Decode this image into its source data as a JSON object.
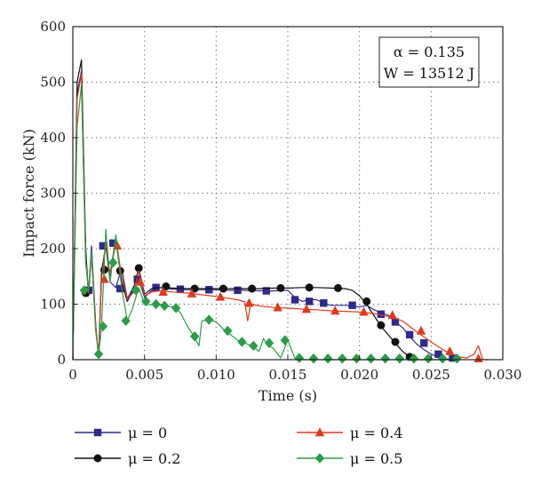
{
  "chart_data": {
    "type": "line",
    "xlabel": "Time (s)",
    "ylabel": "Impact force (kN)",
    "xlim": [
      0,
      0.03
    ],
    "ylim": [
      0,
      600
    ],
    "xticks": [
      "0",
      "0.005",
      "0.010",
      "0.015",
      "0.020",
      "0.025",
      "0.030"
    ],
    "yticks": [
      "0",
      "100",
      "200",
      "300",
      "400",
      "500",
      "600"
    ],
    "grid": "dotted",
    "annotation": {
      "line1": "α = 0.135",
      "line2": "W = 13512 J"
    },
    "legend": {
      "placement": "bottom"
    },
    "series": [
      {
        "name": "μ = 0",
        "color": "#2e2a8c",
        "marker": "square",
        "line": [
          [
            0,
            0
          ],
          [
            0.0003,
            480
          ],
          [
            0.0006,
            520
          ],
          [
            0.0009,
            180
          ],
          [
            0.0011,
            120
          ],
          [
            0.0013,
            205
          ],
          [
            0.0016,
            60
          ],
          [
            0.0018,
            5
          ],
          [
            0.002,
            150
          ],
          [
            0.0023,
            210
          ],
          [
            0.0026,
            140
          ],
          [
            0.003,
            130
          ],
          [
            0.0034,
            165
          ],
          [
            0.0038,
            110
          ],
          [
            0.0042,
            130
          ],
          [
            0.0046,
            145
          ],
          [
            0.005,
            112
          ],
          [
            0.0055,
            125
          ],
          [
            0.006,
            130
          ],
          [
            0.007,
            127
          ],
          [
            0.008,
            126
          ],
          [
            0.009,
            126
          ],
          [
            0.01,
            126
          ],
          [
            0.011,
            125
          ],
          [
            0.012,
            125
          ],
          [
            0.013,
            124
          ],
          [
            0.014,
            124
          ],
          [
            0.015,
            125
          ],
          [
            0.0155,
            112
          ],
          [
            0.016,
            105
          ],
          [
            0.0165,
            108
          ],
          [
            0.017,
            108
          ],
          [
            0.0175,
            102
          ],
          [
            0.018,
            98
          ],
          [
            0.019,
            98
          ],
          [
            0.02,
            95
          ],
          [
            0.0205,
            98
          ],
          [
            0.021,
            90
          ],
          [
            0.022,
            80
          ],
          [
            0.0225,
            68
          ],
          [
            0.023,
            58
          ],
          [
            0.0235,
            42
          ],
          [
            0.024,
            28
          ],
          [
            0.0245,
            18
          ],
          [
            0.025,
            10
          ],
          [
            0.0255,
            5
          ],
          [
            0.026,
            2
          ],
          [
            0.0265,
            0
          ],
          [
            0.027,
            0
          ]
        ],
        "markers": [
          [
            0.0011,
            125
          ],
          [
            0.0021,
            205
          ],
          [
            0.0028,
            210
          ],
          [
            0.0033,
            128
          ],
          [
            0.0045,
            145
          ],
          [
            0.0058,
            130
          ],
          [
            0.0075,
            127
          ],
          [
            0.0095,
            126
          ],
          [
            0.0115,
            125
          ],
          [
            0.0135,
            124
          ],
          [
            0.0155,
            108
          ],
          [
            0.0165,
            105
          ],
          [
            0.0175,
            102
          ],
          [
            0.0195,
            98
          ],
          [
            0.0215,
            82
          ],
          [
            0.0225,
            68
          ],
          [
            0.0235,
            45
          ],
          [
            0.0245,
            30
          ],
          [
            0.0255,
            10
          ],
          [
            0.0265,
            3
          ]
        ]
      },
      {
        "name": "μ = 0.2",
        "color": "#111111",
        "marker": "circle",
        "line": [
          [
            0,
            0
          ],
          [
            0.0003,
            500
          ],
          [
            0.0006,
            540
          ],
          [
            0.0009,
            200
          ],
          [
            0.0011,
            115
          ],
          [
            0.0013,
            195
          ],
          [
            0.0016,
            60
          ],
          [
            0.0018,
            3
          ],
          [
            0.002,
            160
          ],
          [
            0.0023,
            205
          ],
          [
            0.0026,
            150
          ],
          [
            0.003,
            215
          ],
          [
            0.0034,
            140
          ],
          [
            0.0038,
            105
          ],
          [
            0.0042,
            125
          ],
          [
            0.0046,
            165
          ],
          [
            0.005,
            118
          ],
          [
            0.0055,
            128
          ],
          [
            0.006,
            130
          ],
          [
            0.007,
            129
          ],
          [
            0.008,
            128
          ],
          [
            0.009,
            128
          ],
          [
            0.01,
            128
          ],
          [
            0.011,
            128
          ],
          [
            0.012,
            128
          ],
          [
            0.013,
            128
          ],
          [
            0.014,
            129
          ],
          [
            0.015,
            129
          ],
          [
            0.016,
            130
          ],
          [
            0.017,
            130
          ],
          [
            0.018,
            129
          ],
          [
            0.019,
            128
          ],
          [
            0.0195,
            125
          ],
          [
            0.02,
            115
          ],
          [
            0.0205,
            100
          ],
          [
            0.021,
            80
          ],
          [
            0.0215,
            60
          ],
          [
            0.022,
            45
          ],
          [
            0.0225,
            30
          ],
          [
            0.023,
            15
          ],
          [
            0.0235,
            5
          ],
          [
            0.024,
            0
          ],
          [
            0.025,
            0
          ]
        ],
        "markers": [
          [
            0.0009,
            120
          ],
          [
            0.0022,
            162
          ],
          [
            0.0033,
            160
          ],
          [
            0.0046,
            165
          ],
          [
            0.0065,
            132
          ],
          [
            0.0085,
            128
          ],
          [
            0.0105,
            128
          ],
          [
            0.0125,
            128
          ],
          [
            0.0145,
            129
          ],
          [
            0.0165,
            130
          ],
          [
            0.0185,
            129
          ],
          [
            0.0205,
            105
          ],
          [
            0.0215,
            62
          ],
          [
            0.0225,
            32
          ],
          [
            0.0235,
            5
          ]
        ]
      },
      {
        "name": "μ = 0.4",
        "color": "#e03a1e",
        "marker": "triangle",
        "line": [
          [
            0,
            0
          ],
          [
            0.0003,
            470
          ],
          [
            0.0006,
            515
          ],
          [
            0.0009,
            180
          ],
          [
            0.0011,
            120
          ],
          [
            0.0013,
            190
          ],
          [
            0.0016,
            50
          ],
          [
            0.0018,
            10
          ],
          [
            0.002,
            145
          ],
          [
            0.0023,
            210
          ],
          [
            0.0026,
            155
          ],
          [
            0.003,
            220
          ],
          [
            0.0034,
            150
          ],
          [
            0.0038,
            110
          ],
          [
            0.0042,
            120
          ],
          [
            0.0046,
            160
          ],
          [
            0.005,
            115
          ],
          [
            0.0055,
            122
          ],
          [
            0.006,
            124
          ],
          [
            0.007,
            122
          ],
          [
            0.008,
            120
          ],
          [
            0.009,
            117
          ],
          [
            0.01,
            114
          ],
          [
            0.011,
            110
          ],
          [
            0.0115,
            108
          ],
          [
            0.012,
            104
          ],
          [
            0.0122,
            70
          ],
          [
            0.0124,
            100
          ],
          [
            0.013,
            97
          ],
          [
            0.014,
            94
          ],
          [
            0.015,
            93
          ],
          [
            0.016,
            91
          ],
          [
            0.017,
            90
          ],
          [
            0.018,
            88
          ],
          [
            0.019,
            87
          ],
          [
            0.02,
            86
          ],
          [
            0.021,
            83
          ],
          [
            0.022,
            78
          ],
          [
            0.023,
            70
          ],
          [
            0.0235,
            60
          ],
          [
            0.024,
            50
          ],
          [
            0.025,
            32
          ],
          [
            0.026,
            15
          ],
          [
            0.027,
            5
          ],
          [
            0.0275,
            3
          ],
          [
            0.028,
            10
          ],
          [
            0.0283,
            25
          ],
          [
            0.0286,
            0
          ],
          [
            0.029,
            0
          ]
        ],
        "markers": [
          [
            0.0022,
            145
          ],
          [
            0.0031,
            205
          ],
          [
            0.0047,
            140
          ],
          [
            0.0063,
            122
          ],
          [
            0.0083,
            119
          ],
          [
            0.0103,
            113
          ],
          [
            0.0123,
            102
          ],
          [
            0.0143,
            94
          ],
          [
            0.0163,
            91
          ],
          [
            0.0183,
            88
          ],
          [
            0.0203,
            86
          ],
          [
            0.0223,
            80
          ],
          [
            0.0243,
            52
          ],
          [
            0.0263,
            15
          ],
          [
            0.0283,
            2
          ]
        ]
      },
      {
        "name": "μ = 0.5",
        "color": "#2a9d48",
        "marker": "diamond",
        "line": [
          [
            0,
            0
          ],
          [
            0.0003,
            420
          ],
          [
            0.0006,
            495
          ],
          [
            0.0009,
            175
          ],
          [
            0.0011,
            125
          ],
          [
            0.0013,
            195
          ],
          [
            0.0016,
            55
          ],
          [
            0.0018,
            8
          ],
          [
            0.002,
            60
          ],
          [
            0.0023,
            235
          ],
          [
            0.0026,
            140
          ],
          [
            0.003,
            225
          ],
          [
            0.0034,
            130
          ],
          [
            0.0038,
            70
          ],
          [
            0.0042,
            95
          ],
          [
            0.0046,
            130
          ],
          [
            0.005,
            100
          ],
          [
            0.006,
            98
          ],
          [
            0.007,
            95
          ],
          [
            0.0075,
            85
          ],
          [
            0.008,
            60
          ],
          [
            0.0085,
            40
          ],
          [
            0.0088,
            25
          ],
          [
            0.009,
            70
          ],
          [
            0.0095,
            72
          ],
          [
            0.01,
            68
          ],
          [
            0.0105,
            55
          ],
          [
            0.011,
            45
          ],
          [
            0.0115,
            35
          ],
          [
            0.012,
            30
          ],
          [
            0.0125,
            25
          ],
          [
            0.013,
            15
          ],
          [
            0.0133,
            38
          ],
          [
            0.0135,
            30
          ],
          [
            0.014,
            20
          ],
          [
            0.0145,
            3
          ],
          [
            0.015,
            36
          ],
          [
            0.0153,
            15
          ],
          [
            0.0155,
            2
          ],
          [
            0.016,
            0
          ],
          [
            0.017,
            0
          ],
          [
            0.018,
            0
          ],
          [
            0.019,
            0
          ],
          [
            0.02,
            0
          ],
          [
            0.021,
            0
          ],
          [
            0.022,
            0
          ],
          [
            0.023,
            0
          ],
          [
            0.024,
            0
          ],
          [
            0.025,
            0
          ],
          [
            0.026,
            0
          ],
          [
            0.027,
            0
          ]
        ],
        "markers": [
          [
            0.0008,
            125
          ],
          [
            0.0018,
            10
          ],
          [
            0.0021,
            60
          ],
          [
            0.0028,
            175
          ],
          [
            0.0037,
            70
          ],
          [
            0.0044,
            125
          ],
          [
            0.0051,
            105
          ],
          [
            0.0058,
            100
          ],
          [
            0.0064,
            97
          ],
          [
            0.0072,
            93
          ],
          [
            0.0085,
            42
          ],
          [
            0.0095,
            72
          ],
          [
            0.0108,
            52
          ],
          [
            0.0118,
            32
          ],
          [
            0.0126,
            25
          ],
          [
            0.0137,
            30
          ],
          [
            0.0148,
            35
          ],
          [
            0.0158,
            3
          ],
          [
            0.0168,
            2
          ],
          [
            0.0178,
            2
          ],
          [
            0.0188,
            2
          ],
          [
            0.0198,
            2
          ],
          [
            0.0208,
            2
          ],
          [
            0.0218,
            2
          ],
          [
            0.0228,
            2
          ],
          [
            0.0238,
            2
          ],
          [
            0.0248,
            2
          ],
          [
            0.0258,
            2
          ],
          [
            0.0268,
            2
          ]
        ]
      }
    ]
  }
}
